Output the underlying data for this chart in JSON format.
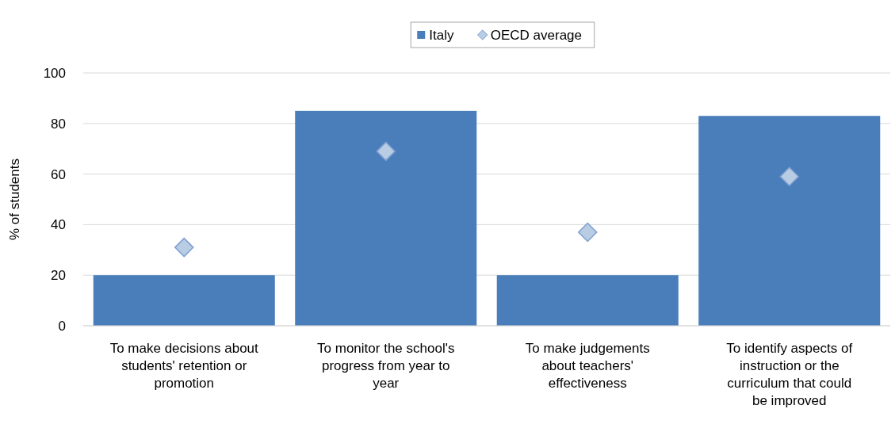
{
  "chart_data": {
    "type": "bar",
    "ylabel": "% of students",
    "categories": [
      "To make decisions about students' retention or promotion",
      "To monitor the school's progress from year to year",
      "To make judgements about teachers' effectiveness",
      "To identify aspects of instruction or the curriculum that could be improved"
    ],
    "series": [
      {
        "name": "Italy",
        "color": "#4a7ebb",
        "values": [
          20,
          85,
          20,
          83
        ]
      },
      {
        "name": "OECD average",
        "type": "scatter",
        "marker": "diamond",
        "color": "#b8cce4",
        "values": [
          31,
          69,
          37,
          59
        ]
      }
    ],
    "ylim": [
      0,
      100
    ],
    "yticks": [
      0,
      20,
      40,
      60,
      80,
      100
    ],
    "grid": "y",
    "legend": "top"
  }
}
